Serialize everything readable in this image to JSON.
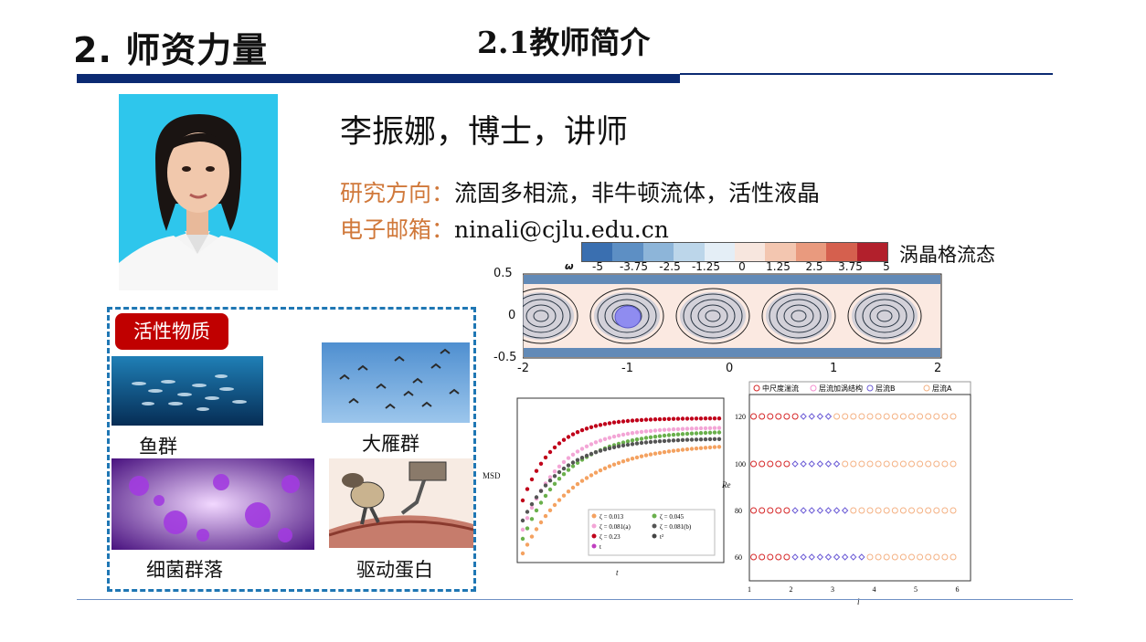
{
  "header": {
    "section_title": "2. 师资力量",
    "sub_title": "2.1教师简介"
  },
  "profile": {
    "name_line": "李振娜，博士，讲师",
    "research_label": "研究方向：",
    "research_value": "流固多相流，非牛顿流体，活性液晶",
    "email_label": "电子邮箱：",
    "email_value": "ninali@cjlu.edu.cn"
  },
  "active_matter": {
    "badge": "活性物质",
    "items": [
      {
        "caption": "鱼群"
      },
      {
        "caption": "大雁群"
      },
      {
        "caption": "细菌群落"
      },
      {
        "caption": "驱动蛋白"
      }
    ]
  },
  "colorbar": {
    "title": "涡晶格流态",
    "symbol": "ω",
    "ticks": [
      "-5",
      "-3.75",
      "-2.5",
      "-1.25",
      "0",
      "1.25",
      "2.5",
      "3.75",
      "5"
    ],
    "colors": [
      "#3a6fb0",
      "#5d8fc4",
      "#8db5d9",
      "#bcd6ea",
      "#e4eef6",
      "#f7e6de",
      "#f3c6b0",
      "#e99a7e",
      "#d5604e",
      "#b2202c"
    ]
  },
  "vortex_plot": {
    "x_ticks": [
      "-2",
      "-1",
      "0",
      "1",
      "2"
    ],
    "y_ticks": [
      "0.5",
      "0",
      "-0.5"
    ]
  },
  "msd_plot": {
    "ylabel": "MSD",
    "xlabel": "t",
    "legend": [
      "ζ = 0.013",
      "ζ = 0.045",
      "ζ = 0.081(a)",
      "ζ = 0.081(b)",
      "ζ = 0.23",
      "t²",
      "t"
    ],
    "colors": [
      "#f4a261",
      "#6ab04c",
      "#f3a6d6",
      "#555555",
      "#c0001a",
      "#444444",
      "#c040c0"
    ]
  },
  "re_plot": {
    "legend": [
      "中尺度湍流",
      "层流加涡结构",
      "层流B",
      "层流A"
    ],
    "colors": [
      "#d62728",
      "#f48fd0",
      "#6b5bd6",
      "#f4b183"
    ],
    "ylabel": "Re",
    "xlabel": "l",
    "y_ticks": [
      "120",
      "100",
      "80",
      "60"
    ],
    "x_ticks": [
      "1",
      "2",
      "3",
      "4",
      "5",
      "6"
    ]
  }
}
